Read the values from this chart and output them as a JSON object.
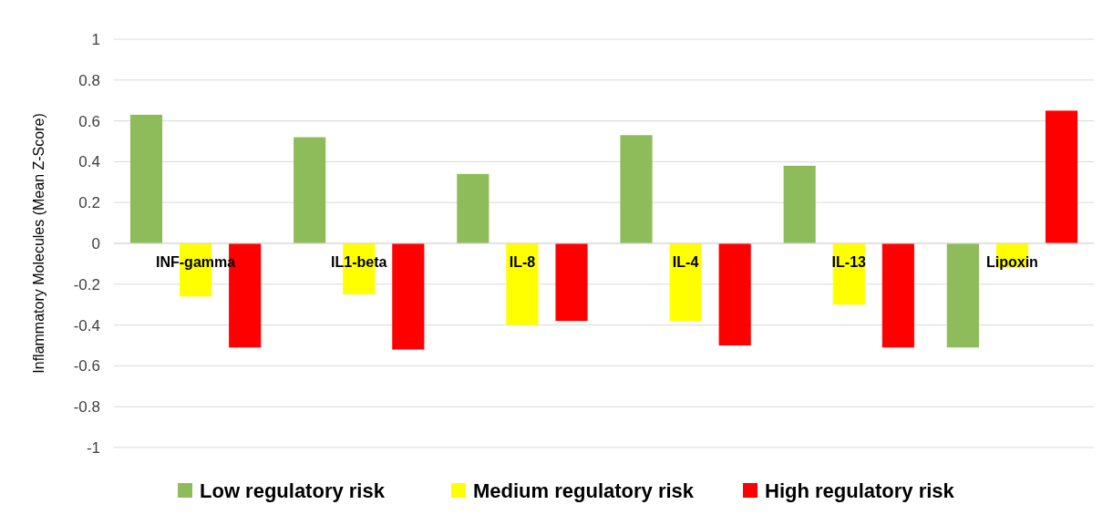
{
  "chart_data": {
    "type": "bar",
    "ylabel": "Inflammatory Molecules (Mean Z-Score)",
    "categories": [
      "INF-gamma",
      "IL1-beta",
      "IL-8",
      "IL-4",
      "IL-13",
      "Lipoxin"
    ],
    "series": [
      {
        "name": "Low regulatory risk",
        "color": "#8fbc5a",
        "values": [
          0.63,
          0.52,
          0.34,
          0.53,
          0.38,
          -0.51
        ]
      },
      {
        "name": "Medium regulatory risk",
        "color": "#ffff00",
        "values": [
          -0.26,
          -0.25,
          -0.4,
          -0.38,
          -0.3,
          -0.12
        ]
      },
      {
        "name": "High regulatory risk",
        "color": "#ff0000",
        "values": [
          -0.51,
          -0.52,
          -0.38,
          -0.5,
          -0.51,
          0.65
        ]
      }
    ],
    "ylim": [
      -1,
      1
    ],
    "yticks": [
      -1,
      -0.8,
      -0.6,
      -0.4,
      -0.2,
      0,
      0.2,
      0.4,
      0.6,
      0.8,
      1
    ],
    "grid": "y",
    "legend": "bottom"
  }
}
